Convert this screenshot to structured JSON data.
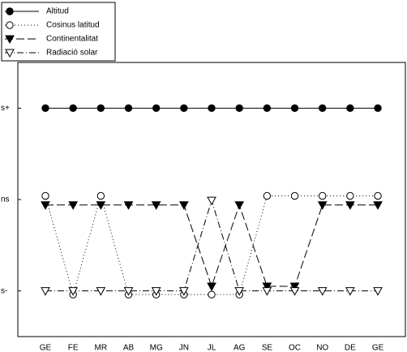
{
  "chart_data": {
    "type": "line",
    "categories": [
      "GE",
      "FE",
      "MR",
      "AB",
      "MG",
      "JN",
      "JL",
      "AG",
      "SE",
      "OC",
      "NO",
      "DE",
      "GE"
    ],
    "ylim": [
      0.5,
      3.5
    ],
    "yticks": [
      {
        "value": 1,
        "label": "s-"
      },
      {
        "value": 2,
        "label": "ns"
      },
      {
        "value": 3,
        "label": "s+"
      }
    ],
    "legend": "top-left",
    "series": [
      {
        "name": "Altitud",
        "color": "#000000",
        "marker": "circle",
        "line_style": "solid",
        "values": [
          3,
          3,
          3,
          3,
          3,
          3,
          3,
          3,
          3,
          3,
          3,
          3,
          3
        ]
      },
      {
        "name": "Cosinus latitud",
        "color": "#000000",
        "marker": "circle-open",
        "line_style": "dotted",
        "values": [
          2.04,
          0.96,
          2.04,
          0.96,
          0.96,
          0.96,
          0.96,
          0.96,
          2.04,
          2.04,
          2.04,
          2.04,
          2.04
        ]
      },
      {
        "name": "Continentalitat",
        "color": "#000000",
        "marker": "triangle-down",
        "line_style": "dashed",
        "values": [
          1.94,
          1.94,
          1.94,
          1.94,
          1.94,
          1.94,
          1.05,
          1.94,
          1.05,
          1.05,
          1.94,
          1.94,
          1.94
        ]
      },
      {
        "name": "Radiació solar",
        "color": "#000000",
        "marker": "triangle-down-open",
        "line_style": "dashdot",
        "values": [
          1,
          1,
          1,
          1,
          1,
          1,
          1.99,
          1,
          1,
          1,
          1,
          1,
          1
        ]
      }
    ]
  }
}
